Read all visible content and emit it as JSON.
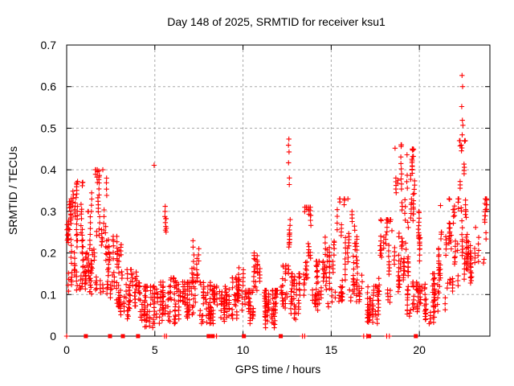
{
  "chart_data": {
    "type": "scatter",
    "title": "Day 148 of 2025, SRMTID for receiver ksu1",
    "xlabel": "GPS time / hours",
    "ylabel": "SRMTID / TECUs",
    "xlim": [
      0,
      24
    ],
    "ylim": [
      0,
      0.7
    ],
    "xticks": [
      0,
      5,
      10,
      15,
      20
    ],
    "yticks": [
      0,
      0.1,
      0.2,
      0.3,
      0.4,
      0.5,
      0.6,
      0.7
    ],
    "grid": true,
    "legend": "none",
    "marker_shape": "plus",
    "marker_color": "#ff0000",
    "grid_color": "#a8a8a8",
    "axis_color": "#000000",
    "background_color": "#ffffff",
    "seed": 1148,
    "scatter_bands": [
      {
        "t0": 0.0,
        "t1": 0.35,
        "ylo": 0.095,
        "yhi": 0.33,
        "n": 42
      },
      {
        "t0": 0.35,
        "t1": 0.95,
        "ylo": 0.11,
        "yhi": 0.37,
        "n": 70
      },
      {
        "t0": 0.95,
        "t1": 1.4,
        "ylo": 0.1,
        "yhi": 0.3,
        "n": 45
      },
      {
        "t0": 1.4,
        "t1": 2.0,
        "ylo": 0.1,
        "yhi": 0.4,
        "n": 58
      },
      {
        "t0": 2.0,
        "t1": 2.4,
        "ylo": 0.1,
        "yhi": 0.38,
        "n": 38
      },
      {
        "t0": 2.4,
        "t1": 2.95,
        "ylo": 0.07,
        "yhi": 0.24,
        "n": 40
      },
      {
        "t0": 2.95,
        "t1": 3.4,
        "ylo": 0.05,
        "yhi": 0.22,
        "n": 38
      },
      {
        "t0": 3.4,
        "t1": 4.2,
        "ylo": 0.04,
        "yhi": 0.16,
        "n": 55
      },
      {
        "t0": 4.2,
        "t1": 5.2,
        "ylo": 0.02,
        "yhi": 0.12,
        "n": 70
      },
      {
        "t0": 5.2,
        "t1": 5.8,
        "ylo": 0.03,
        "yhi": 0.13,
        "n": 38
      },
      {
        "t0": 5.55,
        "t1": 5.7,
        "ylo": 0.24,
        "yhi": 0.32,
        "n": 10,
        "skew": 1.0
      },
      {
        "t0": 5.8,
        "t1": 6.6,
        "ylo": 0.03,
        "yhi": 0.14,
        "n": 55
      },
      {
        "t0": 6.6,
        "t1": 7.1,
        "ylo": 0.04,
        "yhi": 0.13,
        "n": 40
      },
      {
        "t0": 7.1,
        "t1": 7.5,
        "ylo": 0.05,
        "yhi": 0.23,
        "n": 32
      },
      {
        "t0": 7.5,
        "t1": 8.2,
        "ylo": 0.03,
        "yhi": 0.13,
        "n": 48
      },
      {
        "t0": 8.2,
        "t1": 9.0,
        "ylo": 0.03,
        "yhi": 0.12,
        "n": 55
      },
      {
        "t0": 9.0,
        "t1": 9.7,
        "ylo": 0.04,
        "yhi": 0.14,
        "n": 45
      },
      {
        "t0": 9.7,
        "t1": 10.1,
        "ylo": 0.06,
        "yhi": 0.19,
        "n": 28
      },
      {
        "t0": 10.1,
        "t1": 10.6,
        "ylo": 0.03,
        "yhi": 0.11,
        "n": 40
      },
      {
        "t0": 10.6,
        "t1": 10.95,
        "ylo": 0.08,
        "yhi": 0.2,
        "n": 28
      },
      {
        "t0": 10.95,
        "t1": 12.1,
        "ylo": 0.02,
        "yhi": 0.11,
        "n": 80
      },
      {
        "t0": 12.1,
        "t1": 12.5,
        "ylo": 0.05,
        "yhi": 0.17,
        "n": 28
      },
      {
        "t0": 12.52,
        "t1": 12.68,
        "ylo": 0.15,
        "yhi": 0.46,
        "n": 18,
        "skew": 1.0
      },
      {
        "t0": 12.7,
        "t1": 13.4,
        "ylo": 0.04,
        "yhi": 0.15,
        "n": 48
      },
      {
        "t0": 13.4,
        "t1": 13.9,
        "ylo": 0.08,
        "yhi": 0.31,
        "n": 40
      },
      {
        "t0": 13.9,
        "t1": 14.6,
        "ylo": 0.06,
        "yhi": 0.18,
        "n": 48
      },
      {
        "t0": 14.6,
        "t1": 15.3,
        "ylo": 0.07,
        "yhi": 0.24,
        "n": 48
      },
      {
        "t0": 15.3,
        "t1": 16.1,
        "ylo": 0.08,
        "yhi": 0.33,
        "n": 52
      },
      {
        "t0": 16.1,
        "t1": 16.9,
        "ylo": 0.08,
        "yhi": 0.3,
        "n": 48
      },
      {
        "t0": 16.9,
        "t1": 17.7,
        "ylo": 0.03,
        "yhi": 0.12,
        "n": 58
      },
      {
        "t0": 17.7,
        "t1": 18.5,
        "ylo": 0.06,
        "yhi": 0.28,
        "n": 48
      },
      {
        "t0": 18.5,
        "t1": 19.0,
        "ylo": 0.1,
        "yhi": 0.46,
        "n": 44
      },
      {
        "t0": 19.0,
        "t1": 19.45,
        "ylo": 0.12,
        "yhi": 0.44,
        "n": 40
      },
      {
        "t0": 19.45,
        "t1": 19.75,
        "ylo": 0.22,
        "yhi": 0.45,
        "n": 34,
        "skew": 0.75
      },
      {
        "t0": 19.3,
        "t1": 20.1,
        "ylo": 0.04,
        "yhi": 0.13,
        "n": 40
      },
      {
        "t0": 19.75,
        "t1": 20.2,
        "ylo": 0.08,
        "yhi": 0.3,
        "n": 30
      },
      {
        "t0": 20.2,
        "t1": 21.0,
        "ylo": 0.03,
        "yhi": 0.15,
        "n": 52
      },
      {
        "t0": 21.0,
        "t1": 21.55,
        "ylo": 0.06,
        "yhi": 0.25,
        "n": 38
      },
      {
        "t0": 21.55,
        "t1": 22.25,
        "ylo": 0.1,
        "yhi": 0.33,
        "n": 52
      },
      {
        "t0": 22.25,
        "t1": 22.65,
        "ylo": 0.12,
        "yhi": 0.47,
        "n": 42,
        "skew": 1.0
      },
      {
        "t0": 22.65,
        "t1": 23.35,
        "ylo": 0.12,
        "yhi": 0.3,
        "n": 48
      },
      {
        "t0": 23.35,
        "t1": 23.9,
        "ylo": 0.13,
        "yhi": 0.33,
        "n": 24
      }
    ],
    "outlier_points": [
      [
        0.58,
        0.365
      ],
      [
        0.62,
        0.372
      ],
      [
        2.05,
        0.4
      ],
      [
        4.96,
        0.411
      ],
      [
        12.58,
        0.459
      ],
      [
        12.6,
        0.474
      ],
      [
        12.61,
        0.443
      ],
      [
        15.95,
        0.33
      ],
      [
        18.62,
        0.452
      ],
      [
        19.3,
        0.436
      ],
      [
        19.62,
        0.447
      ],
      [
        21.2,
        0.314
      ],
      [
        22.4,
        0.552
      ],
      [
        22.42,
        0.627
      ],
      [
        22.43,
        0.484
      ],
      [
        22.44,
        0.519
      ],
      [
        22.45,
        0.6
      ],
      [
        22.47,
        0.507
      ]
    ],
    "zero_squares": [
      1.09,
      2.46,
      3.19,
      4.05,
      8.05,
      8.28,
      10.05,
      12.14,
      17.15,
      19.8
    ],
    "zero_plusses": [
      0.0,
      5.55,
      5.66,
      8.5,
      13.37,
      13.5,
      16.84,
      17.02,
      18.15,
      18.3
    ]
  }
}
